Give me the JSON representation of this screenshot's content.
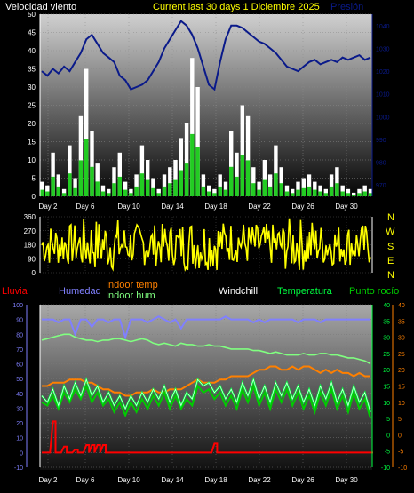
{
  "header": {
    "wind_label": "Velocidad viento",
    "title": "Current last 30 days 1 Diciembre 2025",
    "pressure_label": "Presión"
  },
  "compass": [
    "N",
    "W",
    "S",
    "E",
    "N"
  ],
  "legend2": {
    "rain": "Lluvia",
    "humidity": "Humedad",
    "indoor_temp": "Indoor temp",
    "indoor_hum": "Indoor hum",
    "windchill": "Windchill",
    "temperature": "Temperatura",
    "dewpoint": "Punto rocío"
  },
  "colors": {
    "wind_gust": "#ffffff",
    "wind_avg": "#22cc22",
    "pressure": "#0a1a8a",
    "direction": "#ffff00",
    "rain": "#ff0000",
    "humidity": "#8080ff",
    "indoor_temp": "#ff8000",
    "indoor_hum": "#80ff80",
    "windchill": "#ffffff",
    "temperature": "#00ff40",
    "dewpoint": "#00cc00"
  },
  "chart_data": [
    {
      "type": "area",
      "panel": "wind-pressure",
      "x_ticks": [
        "Day 2",
        "Day 6",
        "Day 10",
        "Day 14",
        "Day 18",
        "Day 22",
        "Day 26",
        "Day 30"
      ],
      "y_left_ticks": [
        "0",
        "5",
        "10",
        "15",
        "20",
        "25",
        "30",
        "35",
        "40",
        "45",
        "50"
      ],
      "ylim_left": [
        0,
        50
      ],
      "y_right_ticks": [
        "970",
        "980",
        "990",
        "1000",
        "1010",
        "1020",
        "1030",
        "1040"
      ],
      "ylim_right": [
        965,
        1045
      ],
      "series": [
        {
          "name": "Velocidad viento",
          "values": [
            4,
            3,
            12,
            6,
            2,
            14,
            5,
            22,
            35,
            18,
            9,
            3,
            2,
            8,
            12,
            4,
            2,
            6,
            14,
            10,
            5,
            2,
            6,
            8,
            10,
            16,
            20,
            38,
            30,
            6,
            3,
            2,
            6,
            4,
            18,
            12,
            25,
            22,
            8,
            4,
            10,
            6,
            14,
            8,
            3,
            2,
            4,
            5,
            6,
            4,
            3,
            2,
            6,
            8,
            3,
            2,
            1,
            2,
            3,
            2
          ]
        },
        {
          "name": "Presión",
          "values": [
            1020,
            1018,
            1021,
            1019,
            1022,
            1020,
            1024,
            1028,
            1034,
            1036,
            1032,
            1028,
            1026,
            1024,
            1018,
            1016,
            1012,
            1013,
            1014,
            1016,
            1020,
            1024,
            1030,
            1034,
            1038,
            1042,
            1040,
            1036,
            1030,
            1022,
            1014,
            1012,
            1024,
            1034,
            1040,
            1040,
            1039,
            1037,
            1035,
            1033,
            1032,
            1030,
            1028,
            1025,
            1022,
            1021,
            1020,
            1022,
            1024,
            1025,
            1023,
            1024,
            1025,
            1024,
            1026,
            1025,
            1026,
            1027,
            1025,
            1026
          ]
        }
      ]
    },
    {
      "type": "line",
      "panel": "wind-direction",
      "y_ticks": [
        "0",
        "90",
        "180",
        "270",
        "360"
      ],
      "ylim": [
        0,
        360
      ],
      "x_ticks": [
        "Day 2",
        "Day 6",
        "Day 10",
        "Day 14",
        "Day 18",
        "Day 22",
        "Day 26",
        "Day 30"
      ]
    },
    {
      "type": "line",
      "panel": "humidity-temperature",
      "x_ticks": [
        "Day 2",
        "Day 6",
        "Day 10",
        "Day 14",
        "Day 18",
        "Day 22",
        "Day 26",
        "Day 30"
      ],
      "y_left_ticks": [
        "-10",
        "0",
        "10",
        "20",
        "30",
        "40",
        "50",
        "60",
        "70",
        "80",
        "90",
        "100"
      ],
      "ylim_left": [
        -10,
        100
      ],
      "y_mid_ticks": [
        "-10",
        "-5",
        "0",
        "5",
        "10",
        "15",
        "20",
        "25",
        "30",
        "35",
        "40"
      ],
      "y_right_ticks": [
        "-10",
        "-5",
        "0",
        "5",
        "10",
        "15",
        "20",
        "25",
        "30",
        "35",
        "40"
      ],
      "ylim_right": [
        -10,
        40
      ],
      "series": [
        {
          "name": "Humedad",
          "values": [
            90,
            90,
            90,
            88,
            90,
            90,
            80,
            90,
            90,
            85,
            90,
            90,
            88,
            90,
            90,
            78,
            90,
            90,
            90,
            88,
            90,
            92,
            90,
            88,
            90,
            84,
            90,
            90,
            90,
            90,
            90,
            90,
            90,
            92,
            90,
            90,
            90,
            90,
            88,
            90,
            88,
            90,
            90,
            90,
            90,
            90,
            88,
            90,
            90,
            90,
            88,
            90,
            90,
            90,
            90,
            90,
            90,
            90,
            90,
            90
          ]
        },
        {
          "name": "Indoor hum",
          "values": [
            76,
            77,
            78,
            79,
            80,
            80,
            78,
            77,
            76,
            76,
            75,
            76,
            76,
            77,
            77,
            76,
            75,
            76,
            77,
            76,
            74,
            73,
            74,
            73,
            72,
            74,
            73,
            73,
            72,
            72,
            73,
            72,
            72,
            71,
            70,
            70,
            70,
            70,
            69,
            69,
            68,
            67,
            68,
            67,
            66,
            66,
            66,
            67,
            66,
            66,
            67,
            67,
            66,
            66,
            65,
            64,
            64,
            63,
            62,
            60
          ]
        },
        {
          "name": "Indoor temp",
          "values": [
            15,
            15,
            16,
            16,
            16,
            17,
            17,
            17,
            16,
            16,
            15,
            14,
            14,
            13,
            13,
            12,
            12,
            13,
            13,
            13,
            14,
            13,
            13,
            14,
            14,
            14,
            15,
            16,
            17,
            16,
            16,
            16,
            17,
            17,
            18,
            18,
            18,
            18,
            19,
            20,
            20,
            21,
            21,
            20,
            20,
            21,
            20,
            21,
            21,
            20,
            19,
            20,
            19,
            20,
            19,
            19,
            18,
            19,
            18,
            18
          ]
        },
        {
          "name": "Temperatura",
          "values": [
            12,
            10,
            14,
            9,
            15,
            11,
            16,
            12,
            17,
            12,
            15,
            10,
            13,
            9,
            12,
            8,
            12,
            9,
            13,
            10,
            14,
            11,
            15,
            10,
            14,
            9,
            13,
            11,
            17,
            15,
            16,
            13,
            15,
            11,
            14,
            10,
            16,
            12,
            17,
            11,
            15,
            10,
            16,
            12,
            16,
            11,
            15,
            10,
            14,
            9,
            15,
            11,
            16,
            10,
            14,
            9,
            15,
            10,
            13,
            7
          ]
        },
        {
          "name": "Punto rocío",
          "values": [
            10,
            9,
            12,
            8,
            13,
            10,
            14,
            11,
            15,
            10,
            13,
            9,
            11,
            7,
            10,
            6,
            10,
            7,
            11,
            8,
            12,
            9,
            13,
            8,
            12,
            8,
            11,
            9,
            15,
            13,
            14,
            11,
            13,
            9,
            12,
            8,
            14,
            10,
            15,
            9,
            13,
            8,
            14,
            10,
            14,
            9,
            13,
            8,
            12,
            7,
            13,
            9,
            14,
            8,
            12,
            7,
            13,
            8,
            11,
            5
          ]
        },
        {
          "name": "Windchill",
          "values": [
            12,
            10,
            14,
            9,
            15,
            11,
            16,
            12,
            17,
            12,
            15,
            10,
            13,
            9,
            12,
            8,
            12,
            9,
            13,
            10,
            14,
            11,
            15,
            10,
            14,
            9,
            13,
            11,
            17,
            15,
            16,
            13,
            15,
            11,
            14,
            10,
            16,
            12,
            17,
            11,
            15,
            10,
            16,
            12,
            16,
            11,
            15,
            10,
            14,
            9,
            15,
            11,
            16,
            10,
            14,
            9,
            15,
            10,
            13,
            7
          ]
        },
        {
          "name": "Lluvia",
          "values": [
            0,
            0,
            21,
            0,
            4,
            0,
            2,
            0,
            5,
            5,
            5,
            5,
            0,
            0,
            0,
            0,
            0,
            0,
            0,
            0,
            0,
            0,
            0,
            0,
            0,
            0,
            0,
            0,
            0,
            0,
            0,
            6,
            0,
            0,
            0,
            0,
            0,
            0,
            0,
            0,
            0,
            0,
            0,
            0,
            0,
            0,
            0,
            0,
            0,
            0,
            0,
            0,
            0,
            0,
            0,
            0,
            0,
            0,
            0,
            0
          ]
        }
      ]
    }
  ]
}
